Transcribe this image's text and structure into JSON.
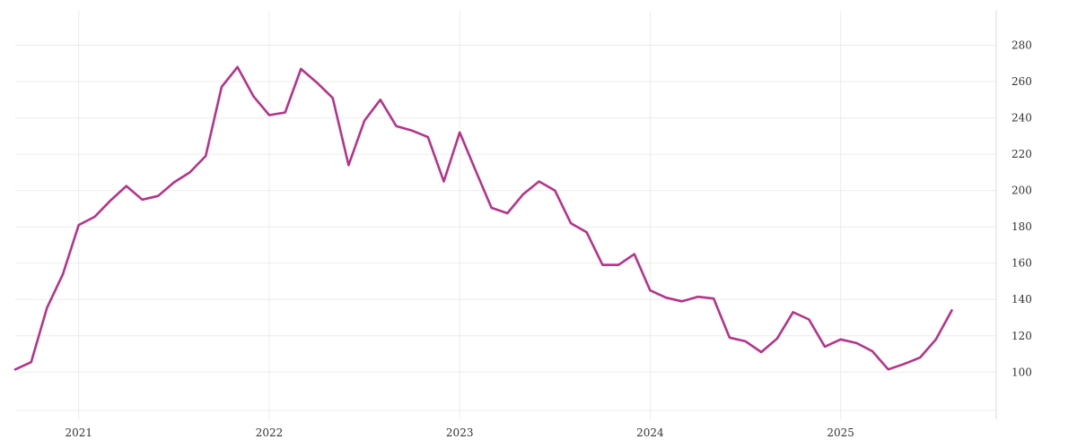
{
  "chart_data": {
    "type": "line",
    "title": "",
    "xlabel": "",
    "ylabel": "",
    "x_tick_labels": [
      "2021",
      "2022",
      "2023",
      "2024",
      "2025"
    ],
    "y_tick_labels": [
      "100",
      "120",
      "140",
      "160",
      "180",
      "200",
      "220",
      "240",
      "260",
      "280"
    ],
    "ylim": [
      74,
      299
    ],
    "xlim": [
      "2020-09",
      "2025-10"
    ],
    "y_axis_side": "right",
    "grid": true,
    "legend": "none",
    "series": [
      {
        "color": "#b5338a",
        "x": [
          "2020-09",
          "2020-10",
          "2020-11",
          "2020-12",
          "2021-01",
          "2021-02",
          "2021-03",
          "2021-04",
          "2021-05",
          "2021-06",
          "2021-07",
          "2021-08",
          "2021-09",
          "2021-10",
          "2021-11",
          "2021-12",
          "2022-01",
          "2022-02",
          "2022-03",
          "2022-04",
          "2022-05",
          "2022-06",
          "2022-07",
          "2022-08",
          "2022-09",
          "2022-10",
          "2022-11",
          "2022-12",
          "2023-01",
          "2023-02",
          "2023-03",
          "2023-04",
          "2023-05",
          "2023-06",
          "2023-07",
          "2023-08",
          "2023-09",
          "2023-10",
          "2023-11",
          "2023-12",
          "2024-01",
          "2024-02",
          "2024-03",
          "2024-04",
          "2024-05",
          "2024-06",
          "2024-07",
          "2024-08",
          "2024-09",
          "2024-10",
          "2024-11",
          "2024-12",
          "2025-01",
          "2025-02",
          "2025-03",
          "2025-04",
          "2025-05",
          "2025-06",
          "2025-07",
          "2025-08",
          "2025-09"
        ],
        "values": [
          101.5,
          105.5,
          135.5,
          154,
          181,
          185.5,
          194.5,
          202.5,
          195,
          197,
          204.5,
          210,
          219,
          257,
          268,
          252,
          241.5,
          243,
          267,
          259.5,
          251,
          214,
          238.5,
          250,
          235.5,
          233,
          229.5,
          205,
          232,
          211,
          190.5,
          187.5,
          198,
          205,
          200,
          182,
          177,
          159,
          159,
          165,
          145,
          141,
          139,
          141.5,
          140.5,
          119,
          117,
          111,
          118.5,
          133,
          129,
          114,
          118,
          116,
          111.5,
          101.5,
          104.5,
          108,
          118,
          134,
          null
        ]
      }
    ]
  }
}
